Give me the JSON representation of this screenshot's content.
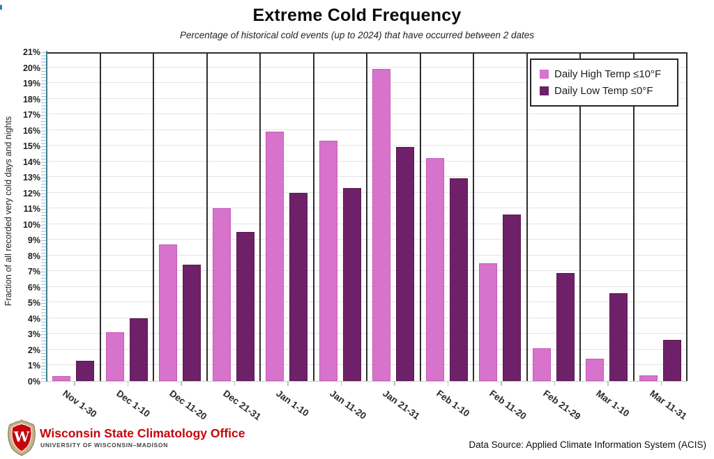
{
  "title": "Extreme Cold Frequency",
  "subtitle": "Percentage of historical cold events (up to 2024) that have occurred between 2 dates",
  "chart_data": {
    "type": "bar",
    "categories": [
      "Nov 1-30",
      "Dec 1-10",
      "Dec 11-20",
      "Dec 21-31",
      "Jan 1-10",
      "Jan 11-20",
      "Jan 21-31",
      "Feb 1-10",
      "Feb 11-20",
      "Feb 21-29",
      "Mar 1-10",
      "Mar 11-31"
    ],
    "series": [
      {
        "name": "Daily High Temp ≤10°F",
        "color": "#d873cb",
        "values": [
          0.3,
          3.1,
          8.7,
          11.0,
          15.9,
          15.3,
          19.9,
          14.2,
          7.5,
          2.1,
          1.4,
          0.35
        ]
      },
      {
        "name": "Daily Low Temp ≤0°F",
        "color": "#6e2168",
        "values": [
          1.3,
          4.0,
          7.4,
          9.5,
          12.0,
          12.3,
          14.9,
          12.9,
          10.6,
          6.9,
          5.6,
          2.6
        ]
      }
    ],
    "title": "Extreme Cold Frequency",
    "xlabel": "",
    "ylabel": "Fraction of all recorded very cold days and nights",
    "ylim": [
      0,
      21
    ],
    "ytick_step": 1,
    "ytick_suffix": "%",
    "grid": true,
    "group_separators": true,
    "legend_position": "top-right"
  },
  "legend": {
    "items": [
      {
        "label": "Daily High Temp ≤10°F",
        "color": "#d873cb"
      },
      {
        "label": "Daily Low Temp ≤0°F",
        "color": "#6e2168"
      }
    ]
  },
  "footer": {
    "org_name": "Wisconsin State Climatology Office",
    "org_sub": "UNIVERSITY OF WISCONSIN–MADISON",
    "logo_letter": "W",
    "data_source": "Data Source: Applied Climate Information System (ACIS)"
  },
  "colors": {
    "series_high": "#d873cb",
    "series_low": "#6e2168",
    "axis_teal": "#417f93",
    "axis_tick_teal": "#8fbecd",
    "separator_black": "#2e2e2e",
    "gridline_gray": "#e3e3e3",
    "uw_red": "#c5050c"
  }
}
